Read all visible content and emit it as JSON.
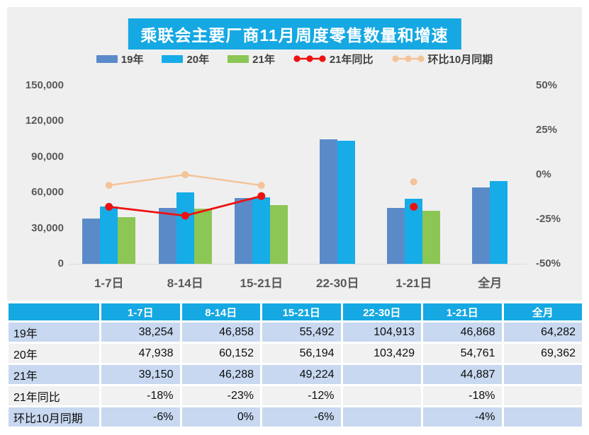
{
  "title": "乘联会主要厂商11月周度零售数量和增速",
  "colors": {
    "accent_cyan": "#15A8E2",
    "bar_19": "#5B8AC9",
    "bar_20": "#16ACE8",
    "bar_21": "#8CC655",
    "line_yoy": "#EE1111",
    "line_mom": "#F5C397",
    "panel_bg": "#EFEFEF",
    "row_blue": "#C7D8F0",
    "row_gray": "#F1F1F1",
    "axis_text": "#595959",
    "baseline": "#DBDBDB"
  },
  "chart_data": {
    "type": "bar",
    "title": "乘联会主要厂商11月周度零售数量和增速",
    "legend_position": "top",
    "grid": false,
    "categories": [
      "1-7日",
      "8-14日",
      "15-21日",
      "22-30日",
      "1-21日",
      "全月"
    ],
    "series": [
      {
        "name": "19年",
        "color_key": "bar_19",
        "values": [
          38254,
          46858,
          55492,
          104913,
          46868,
          64282
        ]
      },
      {
        "name": "20年",
        "color_key": "bar_20",
        "values": [
          47938,
          60152,
          56194,
          103429,
          54761,
          69362
        ]
      },
      {
        "name": "21年",
        "color_key": "bar_21",
        "values": [
          39150,
          46288,
          49224,
          null,
          44887,
          null
        ]
      }
    ],
    "line_series": [
      {
        "name": "21年同比",
        "color_key": "line_yoy",
        "axis": "right",
        "values": [
          -18,
          -23,
          -12,
          null,
          -18,
          null
        ]
      },
      {
        "name": "环比10月同期",
        "color_key": "line_mom",
        "axis": "right",
        "values": [
          -6,
          0,
          -6,
          null,
          -4,
          null
        ]
      }
    ],
    "left_axis": {
      "min": 0,
      "max": 150000,
      "ticks": [
        "150,000",
        "120,000",
        "90,000",
        "60,000",
        "30,000",
        "0"
      ]
    },
    "right_axis": {
      "min": -50,
      "max": 50,
      "ticks": [
        "50%",
        "25%",
        "0%",
        "-25%",
        "-50%"
      ],
      "tick_values": [
        50,
        25,
        0,
        -25,
        -50
      ]
    }
  },
  "table": {
    "header": [
      "",
      "1-7日",
      "8-14日",
      "15-21日",
      "22-30日",
      "1-21日",
      "全月"
    ],
    "rows": [
      {
        "label": "19年",
        "cells": [
          "38,254",
          "46,858",
          "55,492",
          "104,913",
          "46,868",
          "64,282"
        ]
      },
      {
        "label": "20年",
        "cells": [
          "47,938",
          "60,152",
          "56,194",
          "103,429",
          "54,761",
          "69,362"
        ]
      },
      {
        "label": "21年",
        "cells": [
          "39,150",
          "46,288",
          "49,224",
          "",
          "44,887",
          ""
        ]
      },
      {
        "label": "21年同比",
        "cells": [
          "-18%",
          "-23%",
          "-12%",
          "",
          "-18%",
          ""
        ]
      },
      {
        "label": "环比10月同期",
        "cells": [
          "-6%",
          "0%",
          "-6%",
          "",
          "-4%",
          ""
        ]
      }
    ]
  }
}
